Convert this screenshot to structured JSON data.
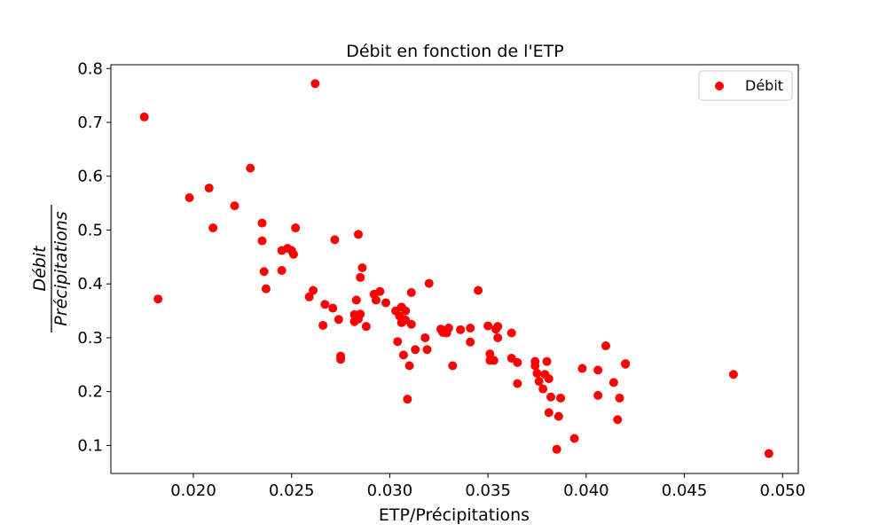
{
  "chart_data": {
    "type": "scatter",
    "title": "Débit en fonction de l'ETP",
    "xlabel": "ETP/Précipitations",
    "ylabel_numerator": "Débit",
    "ylabel_denominator": "Précipitations",
    "xlim": [
      0.0158,
      0.0508
    ],
    "ylim": [
      0.048,
      0.807
    ],
    "x_ticks": [
      0.02,
      0.025,
      0.03,
      0.035,
      0.04,
      0.045,
      0.05
    ],
    "x_tick_labels": [
      "0.020",
      "0.025",
      "0.030",
      "0.035",
      "0.040",
      "0.045",
      "0.050"
    ],
    "y_ticks": [
      0.1,
      0.2,
      0.3,
      0.4,
      0.5,
      0.6,
      0.7,
      0.8
    ],
    "y_tick_labels": [
      "0.1",
      "0.2",
      "0.3",
      "0.4",
      "0.5",
      "0.6",
      "0.7",
      "0.8"
    ],
    "grid": false,
    "legend_position": "top-right",
    "series": [
      {
        "name": "Débit",
        "color": "#ff0000",
        "points": [
          [
            0.0175,
            0.71
          ],
          [
            0.0182,
            0.372
          ],
          [
            0.0198,
            0.56
          ],
          [
            0.0208,
            0.578
          ],
          [
            0.021,
            0.504
          ],
          [
            0.0221,
            0.545
          ],
          [
            0.0229,
            0.615
          ],
          [
            0.0235,
            0.513
          ],
          [
            0.0235,
            0.48
          ],
          [
            0.0236,
            0.423
          ],
          [
            0.0237,
            0.391
          ],
          [
            0.0245,
            0.462
          ],
          [
            0.0245,
            0.425
          ],
          [
            0.0248,
            0.466
          ],
          [
            0.025,
            0.462
          ],
          [
            0.0251,
            0.455
          ],
          [
            0.0252,
            0.504
          ],
          [
            0.0259,
            0.376
          ],
          [
            0.0261,
            0.388
          ],
          [
            0.0262,
            0.772
          ],
          [
            0.0266,
            0.323
          ],
          [
            0.0267,
            0.362
          ],
          [
            0.0271,
            0.355
          ],
          [
            0.0272,
            0.482
          ],
          [
            0.0274,
            0.334
          ],
          [
            0.0275,
            0.266
          ],
          [
            0.0275,
            0.26
          ],
          [
            0.0282,
            0.343
          ],
          [
            0.0282,
            0.33
          ],
          [
            0.0283,
            0.37
          ],
          [
            0.0284,
            0.335
          ],
          [
            0.0284,
            0.492
          ],
          [
            0.0285,
            0.344
          ],
          [
            0.0285,
            0.412
          ],
          [
            0.0286,
            0.43
          ],
          [
            0.0288,
            0.321
          ],
          [
            0.0292,
            0.381
          ],
          [
            0.0293,
            0.37
          ],
          [
            0.0295,
            0.386
          ],
          [
            0.0298,
            0.365
          ],
          [
            0.0303,
            0.35
          ],
          [
            0.0304,
            0.293
          ],
          [
            0.0305,
            0.34
          ],
          [
            0.0306,
            0.328
          ],
          [
            0.0306,
            0.357
          ],
          [
            0.0307,
            0.268
          ],
          [
            0.0308,
            0.333
          ],
          [
            0.0308,
            0.35
          ],
          [
            0.0309,
            0.186
          ],
          [
            0.031,
            0.248
          ],
          [
            0.0311,
            0.384
          ],
          [
            0.0311,
            0.325
          ],
          [
            0.0313,
            0.278
          ],
          [
            0.0318,
            0.3
          ],
          [
            0.0319,
            0.278
          ],
          [
            0.032,
            0.401
          ],
          [
            0.0326,
            0.316
          ],
          [
            0.0327,
            0.31
          ],
          [
            0.0329,
            0.309
          ],
          [
            0.033,
            0.318
          ],
          [
            0.0332,
            0.248
          ],
          [
            0.0336,
            0.315
          ],
          [
            0.0341,
            0.318
          ],
          [
            0.0341,
            0.292
          ],
          [
            0.0345,
            0.388
          ],
          [
            0.035,
            0.322
          ],
          [
            0.0351,
            0.258
          ],
          [
            0.0351,
            0.27
          ],
          [
            0.0353,
            0.258
          ],
          [
            0.0354,
            0.316
          ],
          [
            0.0355,
            0.321
          ],
          [
            0.0355,
            0.3
          ],
          [
            0.0362,
            0.309
          ],
          [
            0.0362,
            0.262
          ],
          [
            0.0365,
            0.254
          ],
          [
            0.0365,
            0.215
          ],
          [
            0.0374,
            0.248
          ],
          [
            0.0374,
            0.256
          ],
          [
            0.0375,
            0.234
          ],
          [
            0.0376,
            0.219
          ],
          [
            0.0378,
            0.205
          ],
          [
            0.0379,
            0.232
          ],
          [
            0.038,
            0.256
          ],
          [
            0.0381,
            0.161
          ],
          [
            0.0381,
            0.224
          ],
          [
            0.0382,
            0.19
          ],
          [
            0.0385,
            0.093
          ],
          [
            0.0386,
            0.154
          ],
          [
            0.0387,
            0.188
          ],
          [
            0.0394,
            0.113
          ],
          [
            0.0398,
            0.243
          ],
          [
            0.0406,
            0.193
          ],
          [
            0.0406,
            0.24
          ],
          [
            0.041,
            0.285
          ],
          [
            0.0414,
            0.217
          ],
          [
            0.0416,
            0.148
          ],
          [
            0.0417,
            0.188
          ],
          [
            0.042,
            0.252
          ],
          [
            0.042,
            0.251
          ],
          [
            0.0475,
            0.232
          ],
          [
            0.0493,
            0.085
          ]
        ]
      }
    ]
  }
}
